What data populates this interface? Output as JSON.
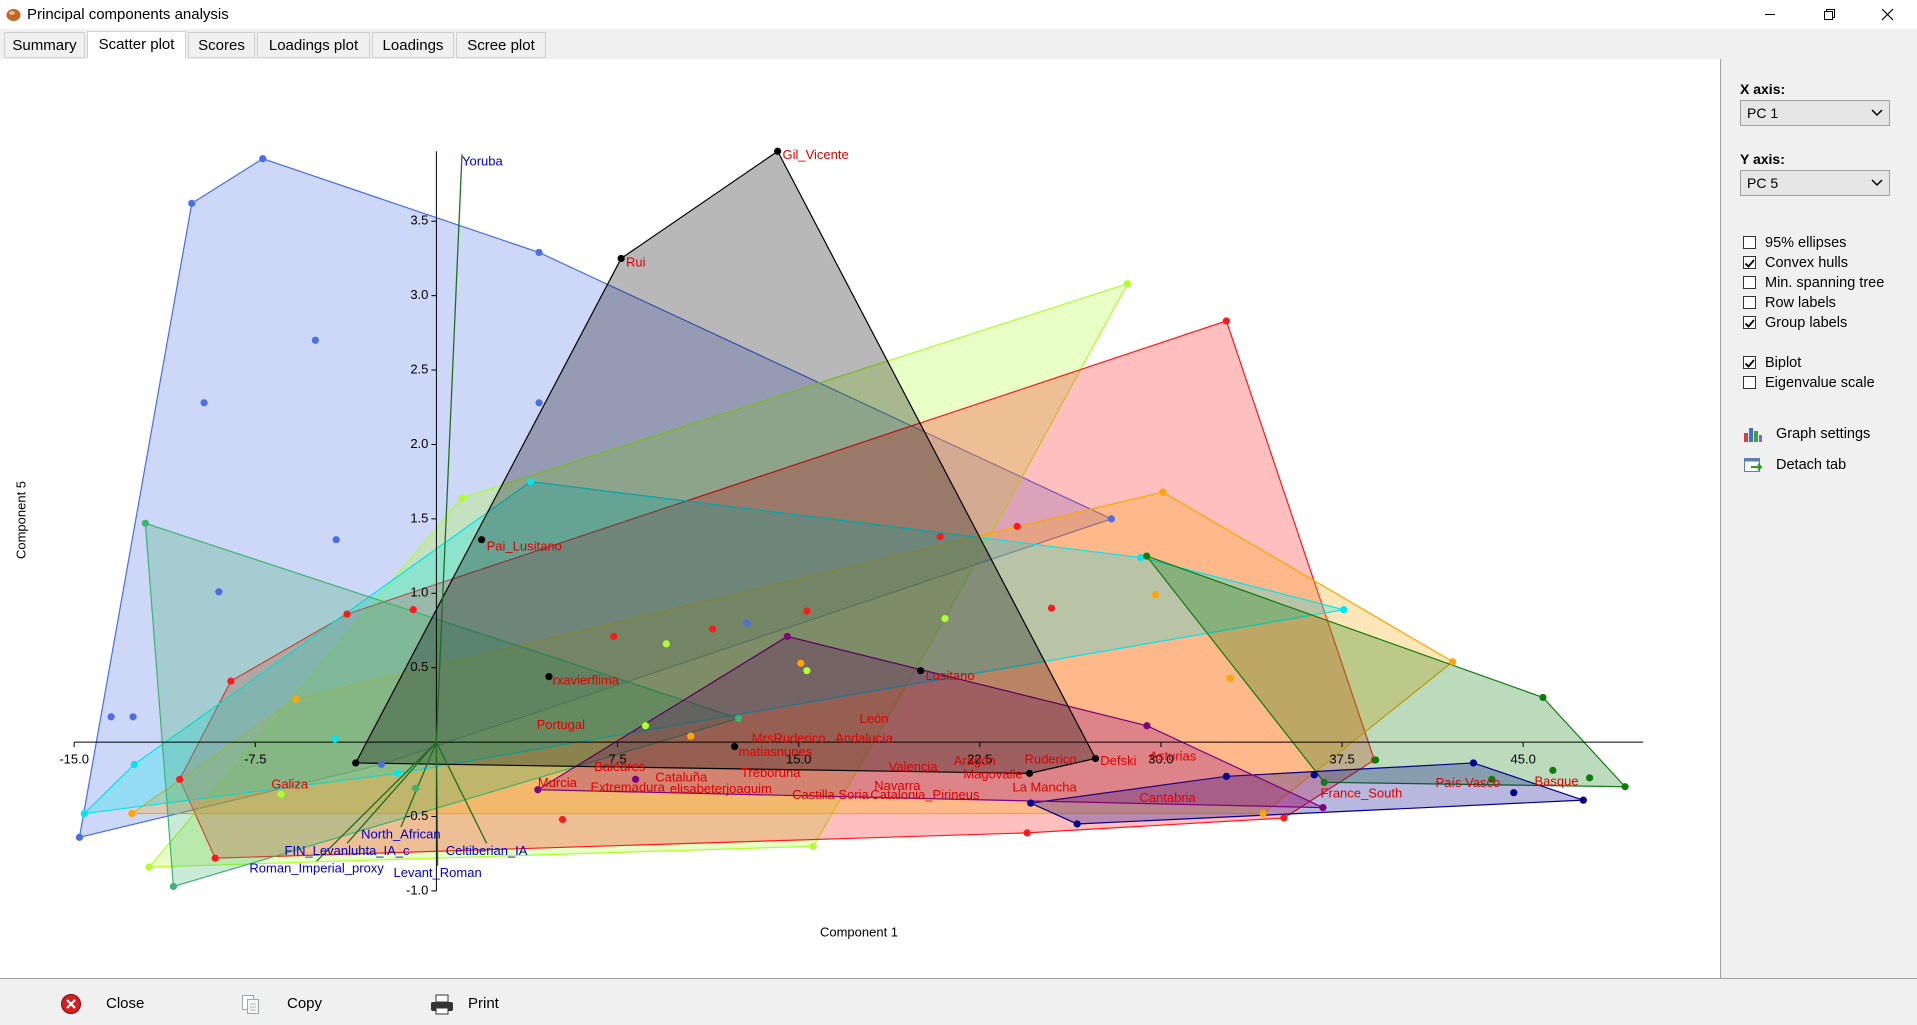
{
  "window": {
    "title": "Principal components analysis"
  },
  "tabs": [
    "Summary",
    "Scatter plot",
    "Scores",
    "Loadings plot",
    "Loadings",
    "Scree plot"
  ],
  "active_tab": 1,
  "panel": {
    "x_axis_label": "X axis:",
    "x_axis_value": "PC 1",
    "y_axis_label": "Y axis:",
    "y_axis_value": "PC 5",
    "options": [
      {
        "label": "95% ellipses",
        "checked": false
      },
      {
        "label": "Convex hulls",
        "checked": true
      },
      {
        "label": "Min. spanning tree",
        "checked": false
      },
      {
        "label": "Row labels",
        "checked": false
      },
      {
        "label": "Group labels",
        "checked": true
      },
      {
        "label": "Biplot",
        "checked": true
      },
      {
        "label": "Eigenvalue scale",
        "checked": false
      }
    ],
    "actions": [
      "Graph settings",
      "Detach tab"
    ]
  },
  "buttons": [
    "Close",
    "Copy",
    "Print"
  ],
  "chart_data": {
    "type": "scatter",
    "x_label": "Component 1",
    "y_label": "Component 5",
    "xlim": [
      -18.07,
      53.15
    ],
    "ylim": [
      -1.585,
      4.59
    ],
    "xticks": [
      {
        "value": -15,
        "label": "-15.0"
      },
      -7.5,
      7.5,
      {
        "value": 15,
        "label": "15.0"
      },
      22.5,
      {
        "value": 30,
        "label": "30.0"
      },
      37.5,
      {
        "value": 45,
        "label": "45.0"
      }
    ],
    "yticks": [
      {
        "value": -1,
        "label": "-1.0"
      },
      -0.5,
      0.5,
      {
        "value": 1,
        "label": "1.0"
      },
      1.5,
      {
        "value": 2,
        "label": "2.0"
      },
      2.5,
      {
        "value": 3,
        "label": "3.0"
      },
      3.5
    ],
    "series": [
      {
        "color": "#4a6fe3",
        "x": [
          -7.19,
          -10.13,
          -5.01,
          -9.62,
          4.25,
          4.25,
          -4.15,
          -9.01,
          27.95,
          -13.47,
          -12.56,
          12.86,
          -14.78,
          -2.28
        ],
        "y": [
          3.92,
          3.62,
          2.7,
          2.28,
          3.29,
          2.28,
          1.36,
          1.01,
          1.5,
          0.17,
          0.17,
          0.8,
          -0.64,
          -0.15
        ]
      },
      {
        "color": "#adff2f",
        "x": [
          28.61,
          1.06,
          9.52,
          15.34,
          21.06,
          8.66,
          -11.9,
          15.6,
          -6.43
        ],
        "y": [
          3.08,
          1.64,
          0.66,
          0.48,
          0.83,
          0.11,
          -0.84,
          -0.7,
          -0.35
        ]
      },
      {
        "color": "#ff1a1a",
        "x": [
          32.71,
          20.86,
          24.05,
          25.47,
          15.34,
          11.44,
          7.34,
          -0.96,
          -3.7,
          -8.51,
          38.84,
          35.09,
          -9.16,
          -10.63,
          24.46,
          5.22
        ],
        "y": [
          2.83,
          1.38,
          1.45,
          0.9,
          0.88,
          0.76,
          0.71,
          0.89,
          0.86,
          0.41,
          -0.12,
          -0.51,
          -0.78,
          -0.25,
          -0.61,
          -0.52
        ]
      },
      {
        "color": "#ffa500",
        "x": [
          30.08,
          42.08,
          29.77,
          15.09,
          -5.82,
          32.86,
          10.53,
          -12.61,
          34.23
        ],
        "y": [
          1.68,
          0.54,
          0.99,
          0.53,
          0.29,
          0.43,
          0.04,
          -0.48,
          -0.48
        ]
      },
      {
        "color": "#00e5ee",
        "x": [
          3.9,
          37.57,
          29.16,
          -12.51,
          -14.58,
          -4.2,
          -1.62
        ],
        "y": [
          1.75,
          0.89,
          1.24,
          -0.15,
          -0.48,
          0.02,
          -0.21
        ]
      },
      {
        "color": "#3cb371",
        "x": [
          -12.05,
          -10.89,
          12.51,
          -0.86
        ],
        "y": [
          1.47,
          -0.97,
          0.16,
          -0.31
        ]
      },
      {
        "color": "#107c10",
        "x": [
          45.82,
          49.22,
          29.41,
          38.89,
          46.23,
          47.75,
          43.7,
          36.76
        ],
        "y": [
          0.3,
          -0.3,
          1.25,
          -0.12,
          -0.19,
          -0.24,
          -0.25,
          -0.27
        ]
      },
      {
        "color": "#00008b",
        "x": [
          42.94,
          47.49,
          32.71,
          36.35,
          24.61,
          26.53,
          44.61
        ],
        "y": [
          -0.14,
          -0.39,
          -0.23,
          -0.22,
          -0.41,
          -0.55,
          -0.34
        ]
      },
      {
        "color": "#800080",
        "x": [
          14.53,
          29.42,
          36.71,
          4.2,
          8.25
        ],
        "y": [
          0.71,
          0.11,
          -0.44,
          -0.32,
          -0.25
        ]
      },
      {
        "color": "#000000",
        "x": [
          14.13,
          7.65,
          1.87,
          4.66,
          20.05,
          27.29,
          24.56,
          12.35,
          -3.34
        ],
        "y": [
          3.97,
          3.25,
          1.36,
          0.44,
          0.48,
          -0.11,
          -0.21,
          -0.03,
          -0.14
        ]
      }
    ],
    "label_color": "#e00000",
    "labels": [
      {
        "text": "Gil_Vicente",
        "x": 14.33,
        "y": 3.94
      },
      {
        "text": "Rui",
        "x": 7.85,
        "y": 3.22
      },
      {
        "text": "Pai_Lusitano",
        "x": 2.08,
        "y": 1.31
      },
      {
        "text": "rxavierflima",
        "x": 4.81,
        "y": 0.41
      },
      {
        "text": "Lusitano",
        "x": 20.25,
        "y": 0.44
      },
      {
        "text": "Portugal",
        "x": 4.15,
        "y": 0.11
      },
      {
        "text": "León",
        "x": 17.52,
        "y": 0.15
      },
      {
        "text": "Andalucía",
        "x": 16.51,
        "y": 0.02
      },
      {
        "text": "MrsRuderico",
        "x": 13.06,
        "y": 0.02
      },
      {
        "text": "matiasnunes",
        "x": 12.51,
        "y": -0.07
      },
      {
        "text": "Baleares",
        "x": 6.53,
        "y": -0.17
      },
      {
        "text": "Cataluña",
        "x": 9.06,
        "y": -0.24
      },
      {
        "text": "Treboruna",
        "x": 12.61,
        "y": -0.21
      },
      {
        "text": "Murcia",
        "x": 4.2,
        "y": -0.28
      },
      {
        "text": "Extremadura",
        "x": 6.38,
        "y": -0.31
      },
      {
        "text": "elisabeterjoaquim",
        "x": 9.67,
        "y": -0.32
      },
      {
        "text": "Valencia",
        "x": 18.73,
        "y": -0.17
      },
      {
        "text": "Aragón",
        "x": 21.42,
        "y": -0.13
      },
      {
        "text": "Magovalle",
        "x": 21.82,
        "y": -0.22
      },
      {
        "text": "Ruderico",
        "x": 24.35,
        "y": -0.12
      },
      {
        "text": "Defski",
        "x": 27.49,
        "y": -0.13
      },
      {
        "text": "Navarra",
        "x": 18.13,
        "y": -0.3
      },
      {
        "text": "La Mancha",
        "x": 23.85,
        "y": -0.31
      },
      {
        "text": "Castilla Soria",
        "x": 14.73,
        "y": -0.36
      },
      {
        "text": "Catalonia_Pirineus",
        "x": 17.97,
        "y": -0.36
      },
      {
        "text": "Asturias",
        "x": 29.52,
        "y": -0.1
      },
      {
        "text": "Cantabria",
        "x": 29.11,
        "y": -0.38
      },
      {
        "text": "Galiza",
        "x": -6.84,
        "y": -0.29
      },
      {
        "text": "France_South",
        "x": 36.61,
        "y": -0.35
      },
      {
        "text": "País Vasco",
        "x": 41.37,
        "y": -0.28
      },
      {
        "text": "Basque",
        "x": 45.47,
        "y": -0.27
      }
    ],
    "biplot_color": "#1f6f1f",
    "biplot_label_color": "#0000cc",
    "biplot": [
      {
        "label": "Yoruba",
        "x": 1.06,
        "y": 3.95
      },
      {
        "label": "North_African",
        "x": -1.47,
        "y": -0.57
      },
      {
        "label": "FIN_Levanluhta_IA_c",
        "x": -3.7,
        "y": -0.68
      },
      {
        "label": "Celtiberian_IA",
        "x": 2.08,
        "y": -0.68
      },
      {
        "label": "Roman_Imperial_proxy",
        "x": -4.96,
        "y": -0.8
      },
      {
        "label": "Levant_Roman",
        "x": 0.05,
        "y": -0.83
      }
    ]
  }
}
